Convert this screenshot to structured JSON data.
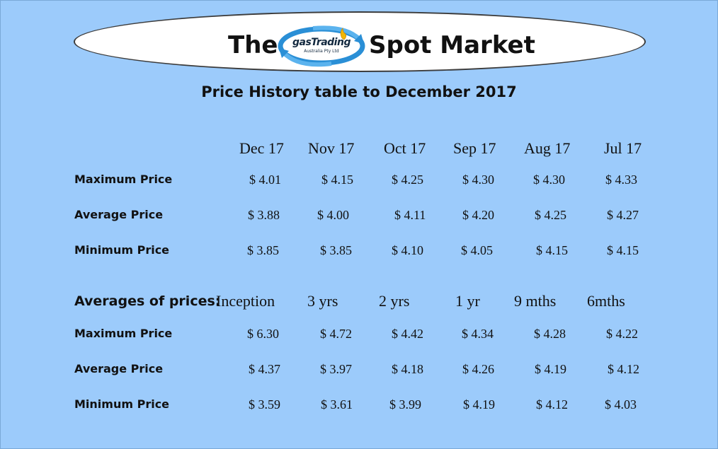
{
  "banner": {
    "left_text": "The",
    "logo_name": "gasTrading",
    "logo_sub": "Australia Pty Ltd",
    "right_text": "Spot Market"
  },
  "title": "Price History table to December 2017",
  "monthly": {
    "headers": [
      "Dec 17",
      "Nov 17",
      "Oct 17",
      "Sep 17",
      "Aug 17",
      "Jul 17"
    ],
    "rows": [
      {
        "label": "Maximum Price",
        "values": [
          "$ 4.01",
          "$ 4.15",
          "$ 4.25",
          "$ 4.30",
          "$ 4.30",
          "$ 4.33"
        ]
      },
      {
        "label": "Average Price",
        "values": [
          "$ 3.88",
          "$ 4.00",
          "$ 4.11",
          "$ 4.20",
          "$ 4.25",
          "$ 4.27"
        ]
      },
      {
        "label": "Minimum Price",
        "values": [
          "$ 3.85",
          "$ 3.85",
          "$ 4.10",
          "$ 4.05",
          "$ 4.15",
          "$ 4.15"
        ]
      }
    ]
  },
  "averages": {
    "label": "Averages of prices:",
    "headers": [
      "Inception",
      "3 yrs",
      "2 yrs",
      "1 yr",
      "9 mths",
      "6mths"
    ],
    "rows": [
      {
        "label": "Maximum Price",
        "values": [
          "$ 6.30",
          "$ 4.72",
          "$ 4.42",
          "$ 4.34",
          "$ 4.28",
          "$ 4.22"
        ]
      },
      {
        "label": "Average Price",
        "values": [
          "$ 4.37",
          "$ 3.97",
          "$ 4.18",
          "$ 4.26",
          "$ 4.19",
          "$ 4.12"
        ]
      },
      {
        "label": "Minimum Price",
        "values": [
          "$ 3.59",
          "$ 3.61",
          "$ 3.99",
          "$ 4.19",
          "$ 4.12",
          "$ 4.03"
        ]
      }
    ]
  },
  "colors": {
    "background": "#9ccbfb",
    "logo_blue": "#2a8fd6",
    "logo_flame": "#f2b705"
  },
  "icons": {
    "logo": "gastrading-swirl-logo",
    "flame": "flame-icon"
  }
}
